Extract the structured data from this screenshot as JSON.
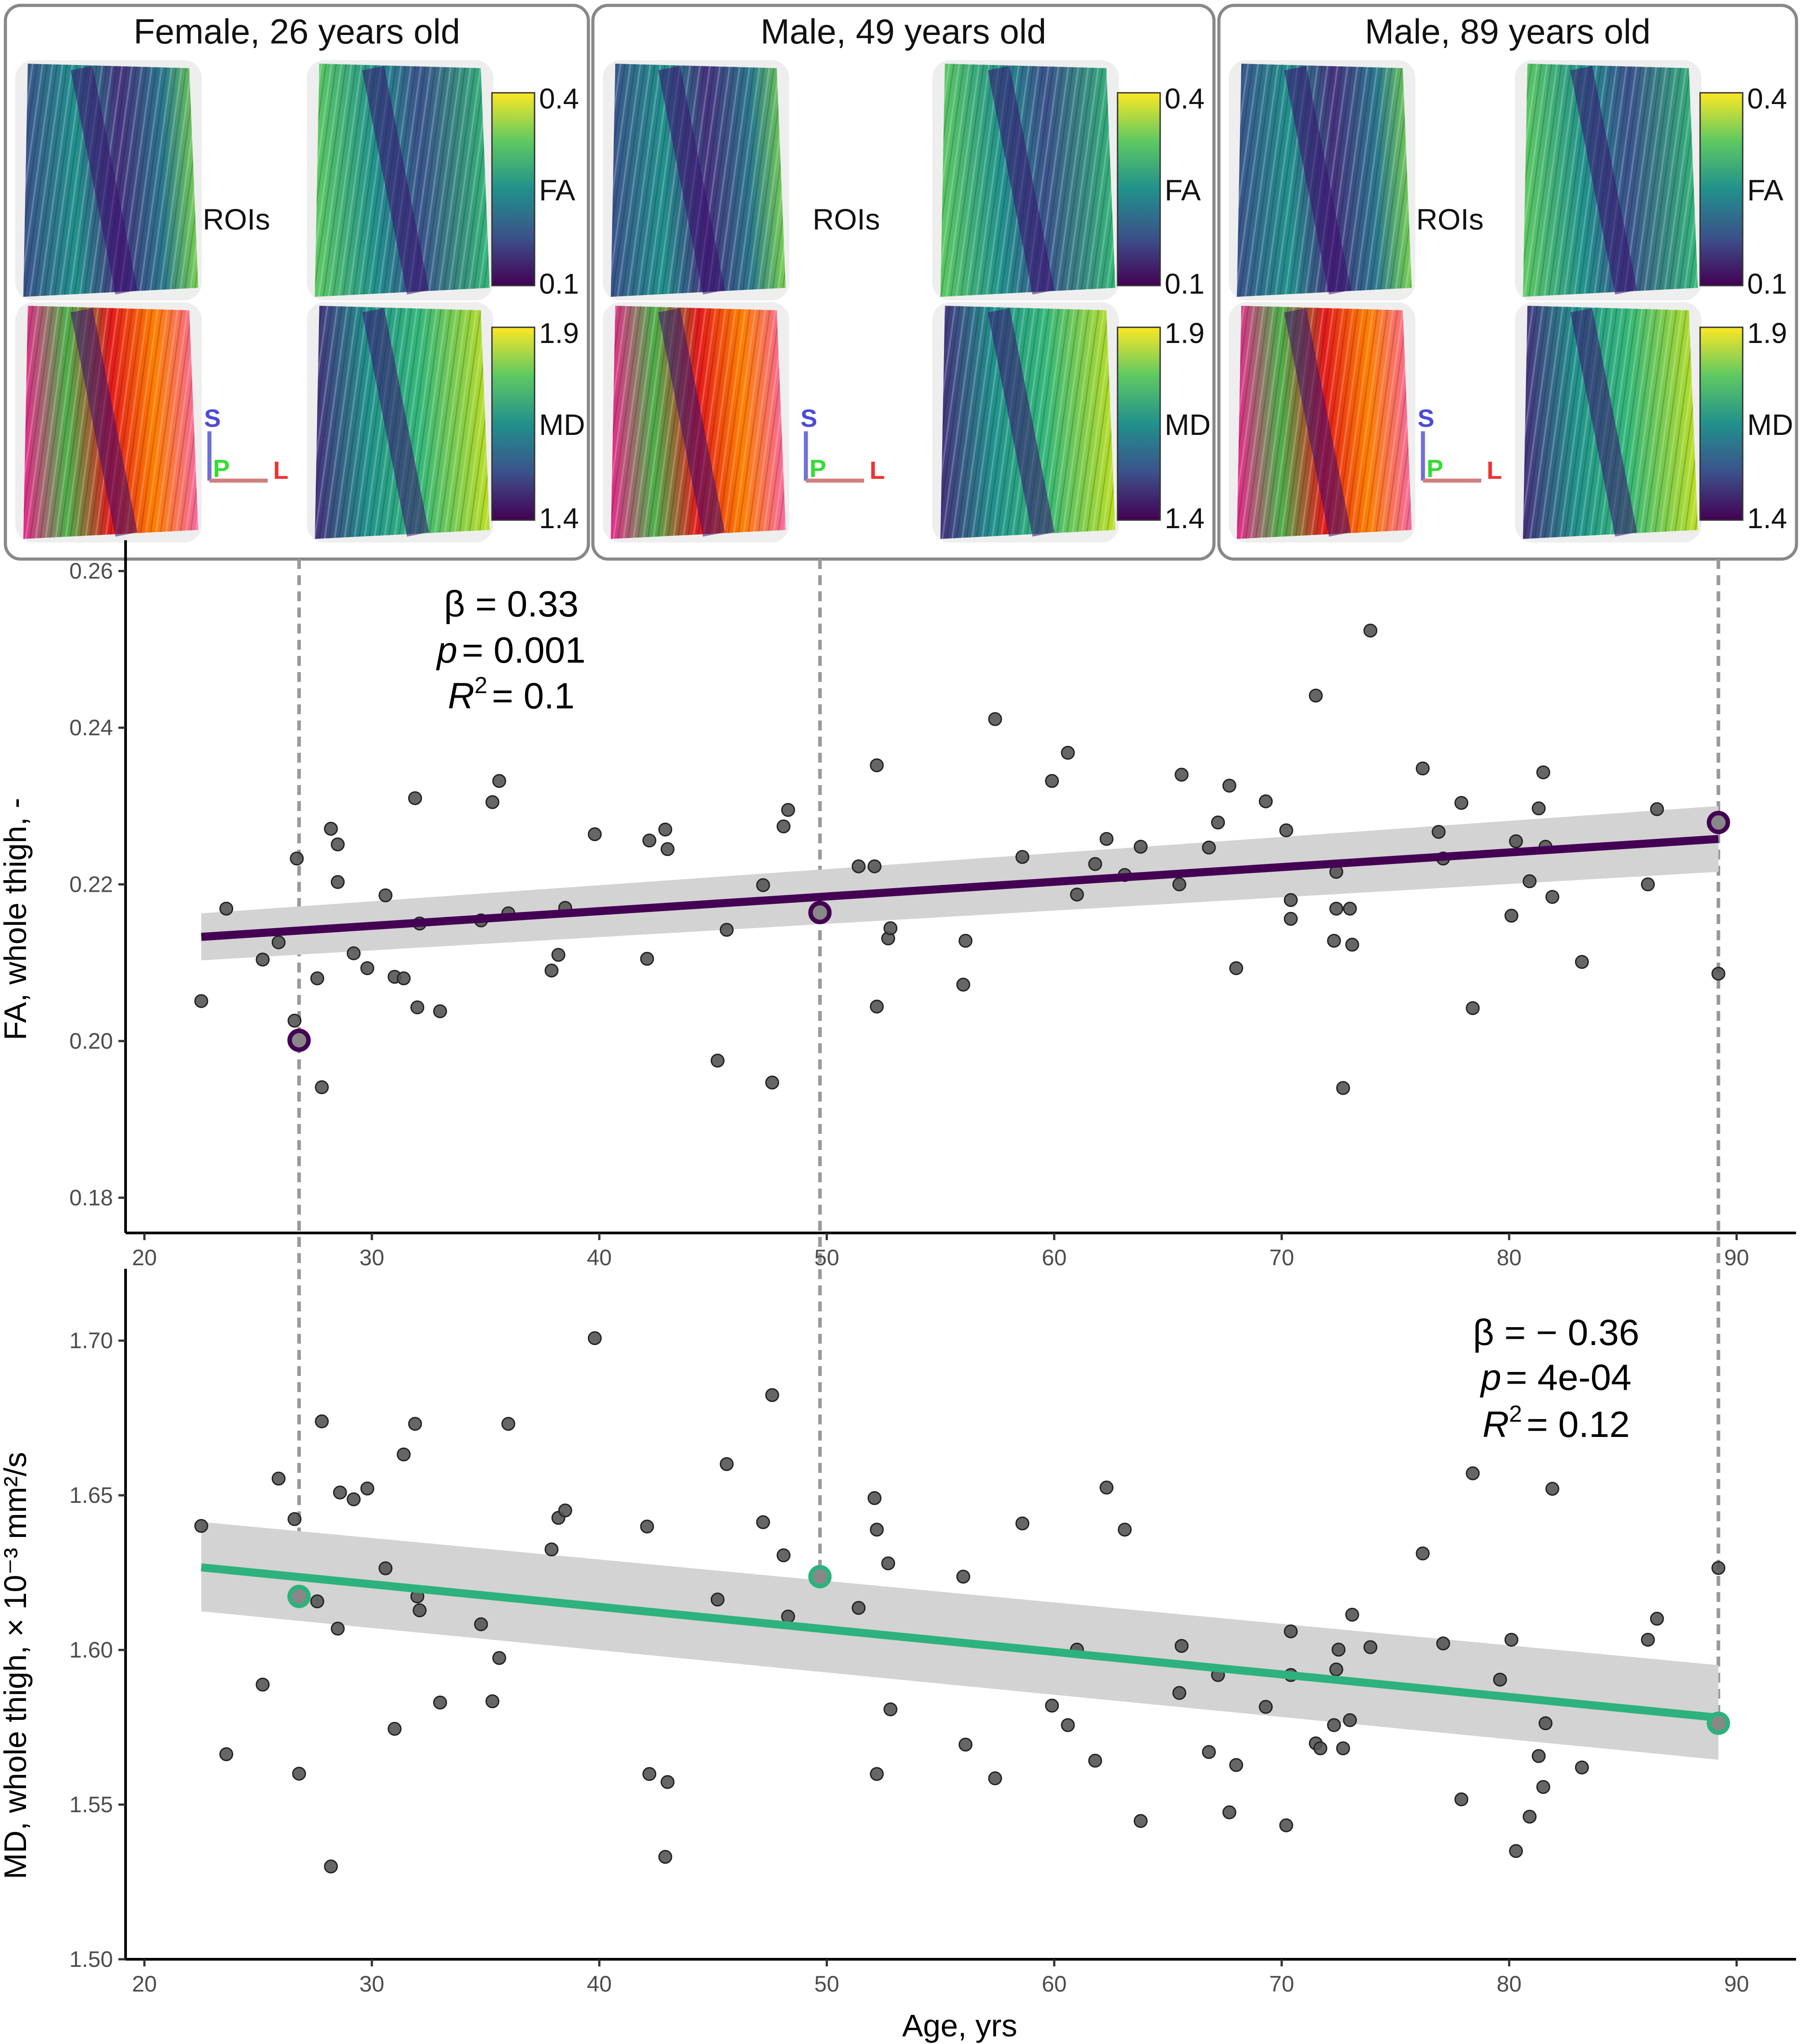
{
  "panels": [
    {
      "title": "Female, 26 years old",
      "age": 26.8,
      "rois_label": "ROIs",
      "fa_bar": {
        "label": "FA",
        "max": "0.4",
        "min": "0.1"
      },
      "md_bar": {
        "label": "MD",
        "max": "1.9",
        "min": "1.4"
      },
      "orientation": {
        "s": "S",
        "p": "P",
        "l": "L"
      }
    },
    {
      "title": "Male, 49 years old",
      "age": 49.7,
      "rois_label": "ROIs",
      "fa_bar": {
        "label": "FA",
        "max": "0.4",
        "min": "0.1"
      },
      "md_bar": {
        "label": "MD",
        "max": "1.9",
        "min": "1.4"
      },
      "orientation": {
        "s": "S",
        "p": "P",
        "l": "L"
      }
    },
    {
      "title": "Male, 89 years old",
      "age": 89.2,
      "rois_label": "ROIs",
      "fa_bar": {
        "label": "FA",
        "max": "0.4",
        "min": "0.1"
      },
      "md_bar": {
        "label": "MD",
        "max": "1.9",
        "min": "1.4"
      },
      "orientation": {
        "s": "S",
        "p": "P",
        "l": "L"
      }
    }
  ],
  "colors": {
    "fa_line": "#440154",
    "md_line": "#2db27d",
    "points": "#555555",
    "ribbon": "#d3d3d3",
    "panel_border": "#888888",
    "dashed": "#999999"
  },
  "chart_data": [
    {
      "type": "scatter",
      "title": "",
      "xlabel": "Age, yrs",
      "ylabel": "FA, whole thigh, -",
      "xlim": [
        19,
        92
      ],
      "ylim": [
        0.1755,
        0.2625
      ],
      "xticks": [
        "20",
        "30",
        "40",
        "50",
        "60",
        "70",
        "80",
        "90"
      ],
      "yticks": [
        "0.18",
        "0.20",
        "0.22",
        "0.24",
        "0.26"
      ],
      "stats": {
        "beta": "β = 0.33",
        "p": "= 0.001",
        "r2": "= 0.1",
        "p_sym": "p",
        "r_sym": "R",
        "r_sup": "2"
      },
      "fit": {
        "x": [
          22.5,
          89.2
        ],
        "y": [
          0.2133,
          0.2258
        ],
        "lower": [
          0.2103,
          0.2216
        ],
        "upper": [
          0.2163,
          0.23
        ]
      },
      "highlighted": [
        {
          "x": 26.8,
          "y": 0.2001
        },
        {
          "x": 49.7,
          "y": 0.2164
        },
        {
          "x": 89.2,
          "y": 0.2279
        }
      ],
      "points": [
        [
          22.5,
          0.2051
        ],
        [
          23.6,
          0.2169
        ],
        [
          25.2,
          0.2104
        ],
        [
          25.9,
          0.2126
        ],
        [
          26.6,
          0.2026
        ],
        [
          26.7,
          0.2233
        ],
        [
          27.6,
          0.208
        ],
        [
          27.8,
          0.1941
        ],
        [
          28.2,
          0.2271
        ],
        [
          28.5,
          0.2203
        ],
        [
          28.5,
          0.2251
        ],
        [
          29.2,
          0.2112
        ],
        [
          29.8,
          0.2093
        ],
        [
          30.6,
          0.2186
        ],
        [
          31.0,
          0.2082
        ],
        [
          31.4,
          0.208
        ],
        [
          31.9,
          0.231
        ],
        [
          32.0,
          0.2043
        ],
        [
          32.1,
          0.215
        ],
        [
          33.0,
          0.2038
        ],
        [
          34.8,
          0.2154
        ],
        [
          35.3,
          0.2305
        ],
        [
          35.6,
          0.2332
        ],
        [
          36.0,
          0.2163
        ],
        [
          37.9,
          0.209
        ],
        [
          38.2,
          0.211
        ],
        [
          38.5,
          0.217
        ],
        [
          39.8,
          0.2264
        ],
        [
          42.1,
          0.2105
        ],
        [
          42.2,
          0.2256
        ],
        [
          42.9,
          0.227
        ],
        [
          43.0,
          0.2245
        ],
        [
          45.2,
          0.1975
        ],
        [
          45.6,
          0.2142
        ],
        [
          47.2,
          0.2199
        ],
        [
          47.6,
          0.1947
        ],
        [
          48.1,
          0.2274
        ],
        [
          48.3,
          0.2295
        ],
        [
          51.4,
          0.2223
        ],
        [
          52.1,
          0.2223
        ],
        [
          52.2,
          0.2044
        ],
        [
          52.2,
          0.2352
        ],
        [
          52.7,
          0.2131
        ],
        [
          52.8,
          0.2144
        ],
        [
          56.0,
          0.2072
        ],
        [
          56.1,
          0.2128
        ],
        [
          57.4,
          0.2411
        ],
        [
          58.6,
          0.2235
        ],
        [
          59.9,
          0.2332
        ],
        [
          60.6,
          0.2368
        ],
        [
          61.0,
          0.2187
        ],
        [
          61.8,
          0.2226
        ],
        [
          62.3,
          0.2258
        ],
        [
          63.1,
          0.2212
        ],
        [
          63.8,
          0.2248
        ],
        [
          65.5,
          0.22
        ],
        [
          65.6,
          0.234
        ],
        [
          66.8,
          0.2247
        ],
        [
          67.2,
          0.2279
        ],
        [
          67.7,
          0.2326
        ],
        [
          68.0,
          0.2093
        ],
        [
          69.3,
          0.2306
        ],
        [
          70.2,
          0.2269
        ],
        [
          70.4,
          0.218
        ],
        [
          70.4,
          0.2156
        ],
        [
          71.5,
          0.2441
        ],
        [
          72.3,
          0.2128
        ],
        [
          72.4,
          0.2169
        ],
        [
          72.4,
          0.2216
        ],
        [
          72.7,
          0.194
        ],
        [
          73.0,
          0.2169
        ],
        [
          73.1,
          0.2123
        ],
        [
          73.9,
          0.2524
        ],
        [
          76.2,
          0.2348
        ],
        [
          76.9,
          0.2267
        ],
        [
          77.1,
          0.2233
        ],
        [
          77.9,
          0.2304
        ],
        [
          78.4,
          0.2042
        ],
        [
          80.1,
          0.216
        ],
        [
          80.3,
          0.2255
        ],
        [
          80.9,
          0.2204
        ],
        [
          81.3,
          0.2297
        ],
        [
          81.5,
          0.2343
        ],
        [
          81.6,
          0.2248
        ],
        [
          81.9,
          0.2184
        ],
        [
          83.2,
          0.2101
        ],
        [
          86.1,
          0.22
        ],
        [
          86.5,
          0.2296
        ],
        [
          89.2,
          0.2086
        ]
      ]
    },
    {
      "type": "scatter",
      "title": "",
      "xlabel": "Age, yrs",
      "ylabel": "MD, whole thigh, × 10⁻³ mm²/s",
      "xlim": [
        19,
        92
      ],
      "ylim": [
        1.5,
        1.7196
      ],
      "xticks": [
        "20",
        "30",
        "40",
        "50",
        "60",
        "70",
        "80",
        "90"
      ],
      "yticks": [
        "1.50",
        "1.55",
        "1.60",
        "1.65",
        "1.70"
      ],
      "stats": {
        "beta": "β = − 0.36",
        "p": "= 4e-04",
        "r2": "= 0.12",
        "p_sym": "p",
        "r_sym": "R",
        "r_sup": "2"
      },
      "fit": {
        "x": [
          22.5,
          89.2
        ],
        "y": [
          1.6267,
          1.5781
        ],
        "lower": [
          1.6125,
          1.5645
        ],
        "upper": [
          1.6414,
          1.5951
        ]
      },
      "highlighted": [
        {
          "x": 26.8,
          "y": 1.6173
        },
        {
          "x": 49.7,
          "y": 1.6237
        },
        {
          "x": 89.2,
          "y": 1.5763
        }
      ],
      "points": [
        [
          22.5,
          1.6401
        ],
        [
          23.6,
          1.5663
        ],
        [
          25.2,
          1.5888
        ],
        [
          25.9,
          1.6554
        ],
        [
          26.6,
          1.6423
        ],
        [
          26.8,
          1.56
        ],
        [
          27.6,
          1.6157
        ],
        [
          27.8,
          1.6739
        ],
        [
          28.2,
          1.53
        ],
        [
          28.5,
          1.6069
        ],
        [
          28.6,
          1.6509
        ],
        [
          29.2,
          1.6487
        ],
        [
          29.8,
          1.6522
        ],
        [
          30.6,
          1.6264
        ],
        [
          31.0,
          1.5745
        ],
        [
          31.4,
          1.6632
        ],
        [
          31.9,
          1.6731
        ],
        [
          32.0,
          1.6173
        ],
        [
          32.1,
          1.6128
        ],
        [
          33.0,
          1.583
        ],
        [
          34.8,
          1.6083
        ],
        [
          35.3,
          1.5834
        ],
        [
          35.6,
          1.5974
        ],
        [
          36.0,
          1.6731
        ],
        [
          37.9,
          1.6325
        ],
        [
          38.2,
          1.6427
        ],
        [
          38.5,
          1.6451
        ],
        [
          39.8,
          1.7008
        ],
        [
          42.1,
          1.6399
        ],
        [
          42.2,
          1.5599
        ],
        [
          42.9,
          1.5331
        ],
        [
          43.0,
          1.5573
        ],
        [
          45.2,
          1.6163
        ],
        [
          45.6,
          1.6601
        ],
        [
          47.2,
          1.6413
        ],
        [
          47.6,
          1.6824
        ],
        [
          48.1,
          1.6306
        ],
        [
          48.3,
          1.6108
        ],
        [
          51.4,
          1.6136
        ],
        [
          52.1,
          1.6491
        ],
        [
          52.2,
          1.5599
        ],
        [
          52.2,
          1.6389
        ],
        [
          52.7,
          1.628
        ],
        [
          52.8,
          1.5808
        ],
        [
          56.0,
          1.6237
        ],
        [
          56.1,
          1.5694
        ],
        [
          57.4,
          1.5585
        ],
        [
          58.6,
          1.6409
        ],
        [
          59.9,
          1.582
        ],
        [
          60.6,
          1.5757
        ],
        [
          61.0,
          1.6001
        ],
        [
          61.8,
          1.5642
        ],
        [
          62.3,
          1.6525
        ],
        [
          63.1,
          1.6389
        ],
        [
          63.8,
          1.5447
        ],
        [
          65.5,
          1.5861
        ],
        [
          65.6,
          1.6013
        ],
        [
          66.8,
          1.567
        ],
        [
          67.2,
          1.5919
        ],
        [
          67.7,
          1.5475
        ],
        [
          68.0,
          1.5628
        ],
        [
          69.3,
          1.5816
        ],
        [
          70.2,
          1.5433
        ],
        [
          70.4,
          1.606
        ],
        [
          70.4,
          1.5919
        ],
        [
          71.5,
          1.5698
        ],
        [
          71.7,
          1.5682
        ],
        [
          72.3,
          1.5757
        ],
        [
          72.4,
          1.5937
        ],
        [
          72.7,
          1.5682
        ],
        [
          72.5,
          1.6001
        ],
        [
          73.0,
          1.5773
        ],
        [
          73.1,
          1.6114
        ],
        [
          73.9,
          1.6009
        ],
        [
          76.2,
          1.6312
        ],
        [
          77.1,
          1.6021
        ],
        [
          77.9,
          1.5517
        ],
        [
          78.4,
          1.6571
        ],
        [
          79.6,
          1.5904
        ],
        [
          80.1,
          1.6033
        ],
        [
          80.3,
          1.535
        ],
        [
          80.9,
          1.5461
        ],
        [
          81.3,
          1.5657
        ],
        [
          81.5,
          1.5557
        ],
        [
          81.6,
          1.5763
        ],
        [
          81.9,
          1.6521
        ],
        [
          83.2,
          1.562
        ],
        [
          86.1,
          1.6033
        ],
        [
          86.5,
          1.6101
        ],
        [
          89.2,
          1.6265
        ]
      ]
    }
  ]
}
